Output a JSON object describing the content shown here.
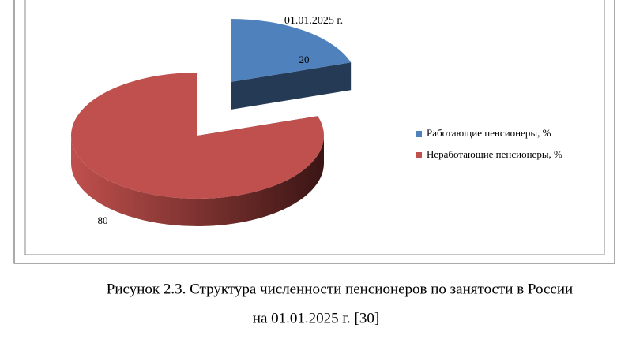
{
  "chart_data": {
    "type": "pie",
    "title": "01.01.2025 г.",
    "categories": [
      "Работающие пенсионеры, %",
      "Неработающие пенсионеры, %"
    ],
    "values": [
      20,
      80
    ],
    "colors": [
      "#4f81bd",
      "#c0504d"
    ]
  },
  "caption": [
    "Рисунок 2.3. Структура численности пенсионеров по занятости в России",
    "на 01.01.2025 г. [30]"
  ]
}
